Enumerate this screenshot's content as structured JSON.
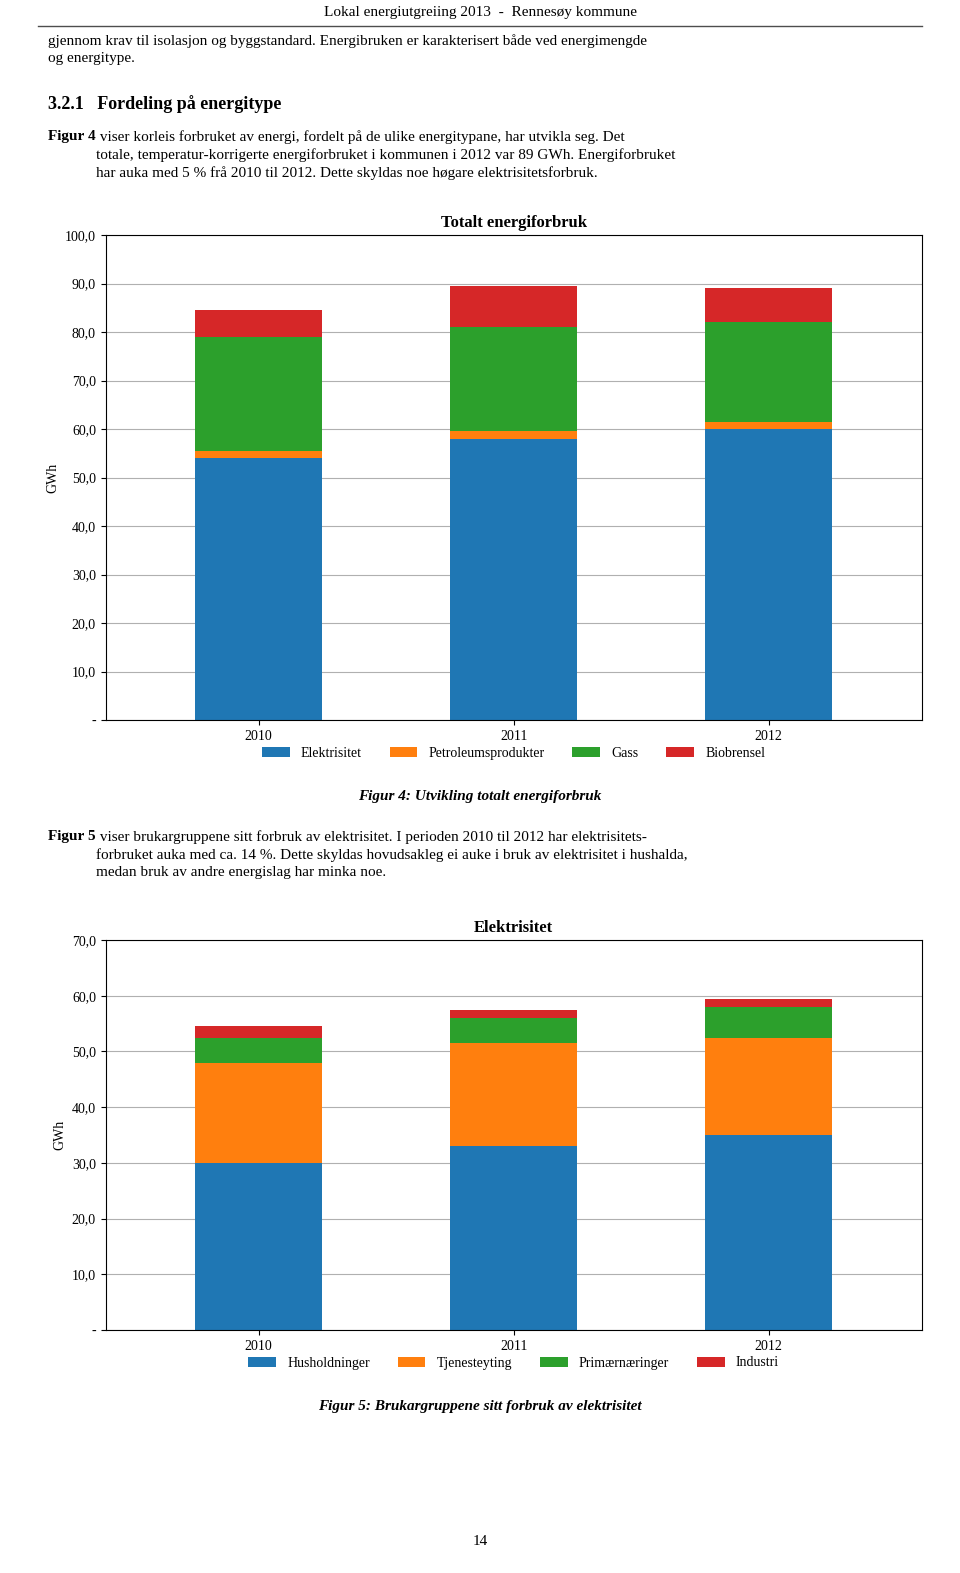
{
  "title": "Lokal energiutgreiing 2013  -  Rennesøy kommune",
  "annotations": [
    "gjennom krav til isolasjon og byggstandard. Energibruken er karakterisert både ved energimengde\nog energitype.",
    "3.2.1   Fordeling på energitype",
    "Figur 4",
    " viser korleis forbruket av energi, fordelt på de ulike energitypane, har utvikla seg. Det\ntotale, temperatur-korrigerte energiforbruket i kommunen i 2012 var 89 GWh. Energiforbruket\nhar auka med 5 % frå 2010 til 2012. Dette skyldas noe høgare elektrisitetsforbruk.",
    "Figur 4: Utvikling totalt energiforbruk",
    "Figur 5",
    " viser brukargruppene sitt forbruk av elektrisitet. I perioden 2010 til 2012 har elektrisitets-\nforbruket auka med ca. 14 %. Dette skyldas hovudsakleg ei auke i bruk av elektrisitet i hushalda,\nmedan bruk av andre energislag har minka noe.",
    "Figur 5: Brukargruppene sitt forbruk av elektrisitet",
    "14"
  ],
  "chart_data": [
    {
      "type": "bar",
      "stacked": true,
      "title": "Totalt energiforbruk",
      "ylabel": "GWh",
      "categories": [
        "2010",
        "2011",
        "2012"
      ],
      "series": [
        {
          "name": "Elektrisitet",
          "values": [
            54.0,
            58.0,
            60.0
          ]
        },
        {
          "name": "Petroleumsprodukter",
          "values": [
            1.5,
            1.5,
            1.5
          ]
        },
        {
          "name": "Gass",
          "values": [
            23.5,
            21.5,
            20.5
          ]
        },
        {
          "name": "Biobrensel",
          "values": [
            5.5,
            8.5,
            7.0
          ]
        }
      ],
      "ylim": [
        0,
        100
      ],
      "yticks": [
        {
          "value": 0,
          "label": "-"
        },
        {
          "value": 10,
          "label": "10,0"
        },
        {
          "value": 20,
          "label": "20,0"
        },
        {
          "value": 30,
          "label": "30,0"
        },
        {
          "value": 40,
          "label": "40,0"
        },
        {
          "value": 50,
          "label": "50,0"
        },
        {
          "value": 60,
          "label": "60,0"
        },
        {
          "value": 70,
          "label": "70,0"
        },
        {
          "value": 80,
          "label": "80,0"
        },
        {
          "value": 90,
          "label": "90,0"
        },
        {
          "value": 100,
          "label": "100,0"
        }
      ],
      "grid": true,
      "legend": "lower center"
    },
    {
      "type": "bar",
      "stacked": true,
      "title": "Elektrisitet",
      "ylabel": "GWh",
      "categories": [
        "2010",
        "2011",
        "2012"
      ],
      "series": [
        {
          "name": "Husholdninger",
          "values": [
            30.0,
            33.0,
            35.0
          ]
        },
        {
          "name": "Tjenesteyting",
          "values": [
            18.0,
            18.5,
            17.5
          ]
        },
        {
          "name": "Primærnæringer",
          "values": [
            4.5,
            4.5,
            5.5
          ]
        },
        {
          "name": "Industri",
          "values": [
            2.0,
            1.5,
            1.5
          ]
        }
      ],
      "ylim": [
        0,
        70
      ],
      "yticks": [
        {
          "value": 0,
          "label": "-"
        },
        {
          "value": 10,
          "label": "10,0"
        },
        {
          "value": 20,
          "label": "20,0"
        },
        {
          "value": 30,
          "label": "30,0"
        },
        {
          "value": 40,
          "label": "40,0"
        },
        {
          "value": 50,
          "label": "50,0"
        },
        {
          "value": 60,
          "label": "60,0"
        },
        {
          "value": 70,
          "label": "70,0"
        }
      ],
      "grid": true,
      "legend": "lower center"
    }
  ]
}
